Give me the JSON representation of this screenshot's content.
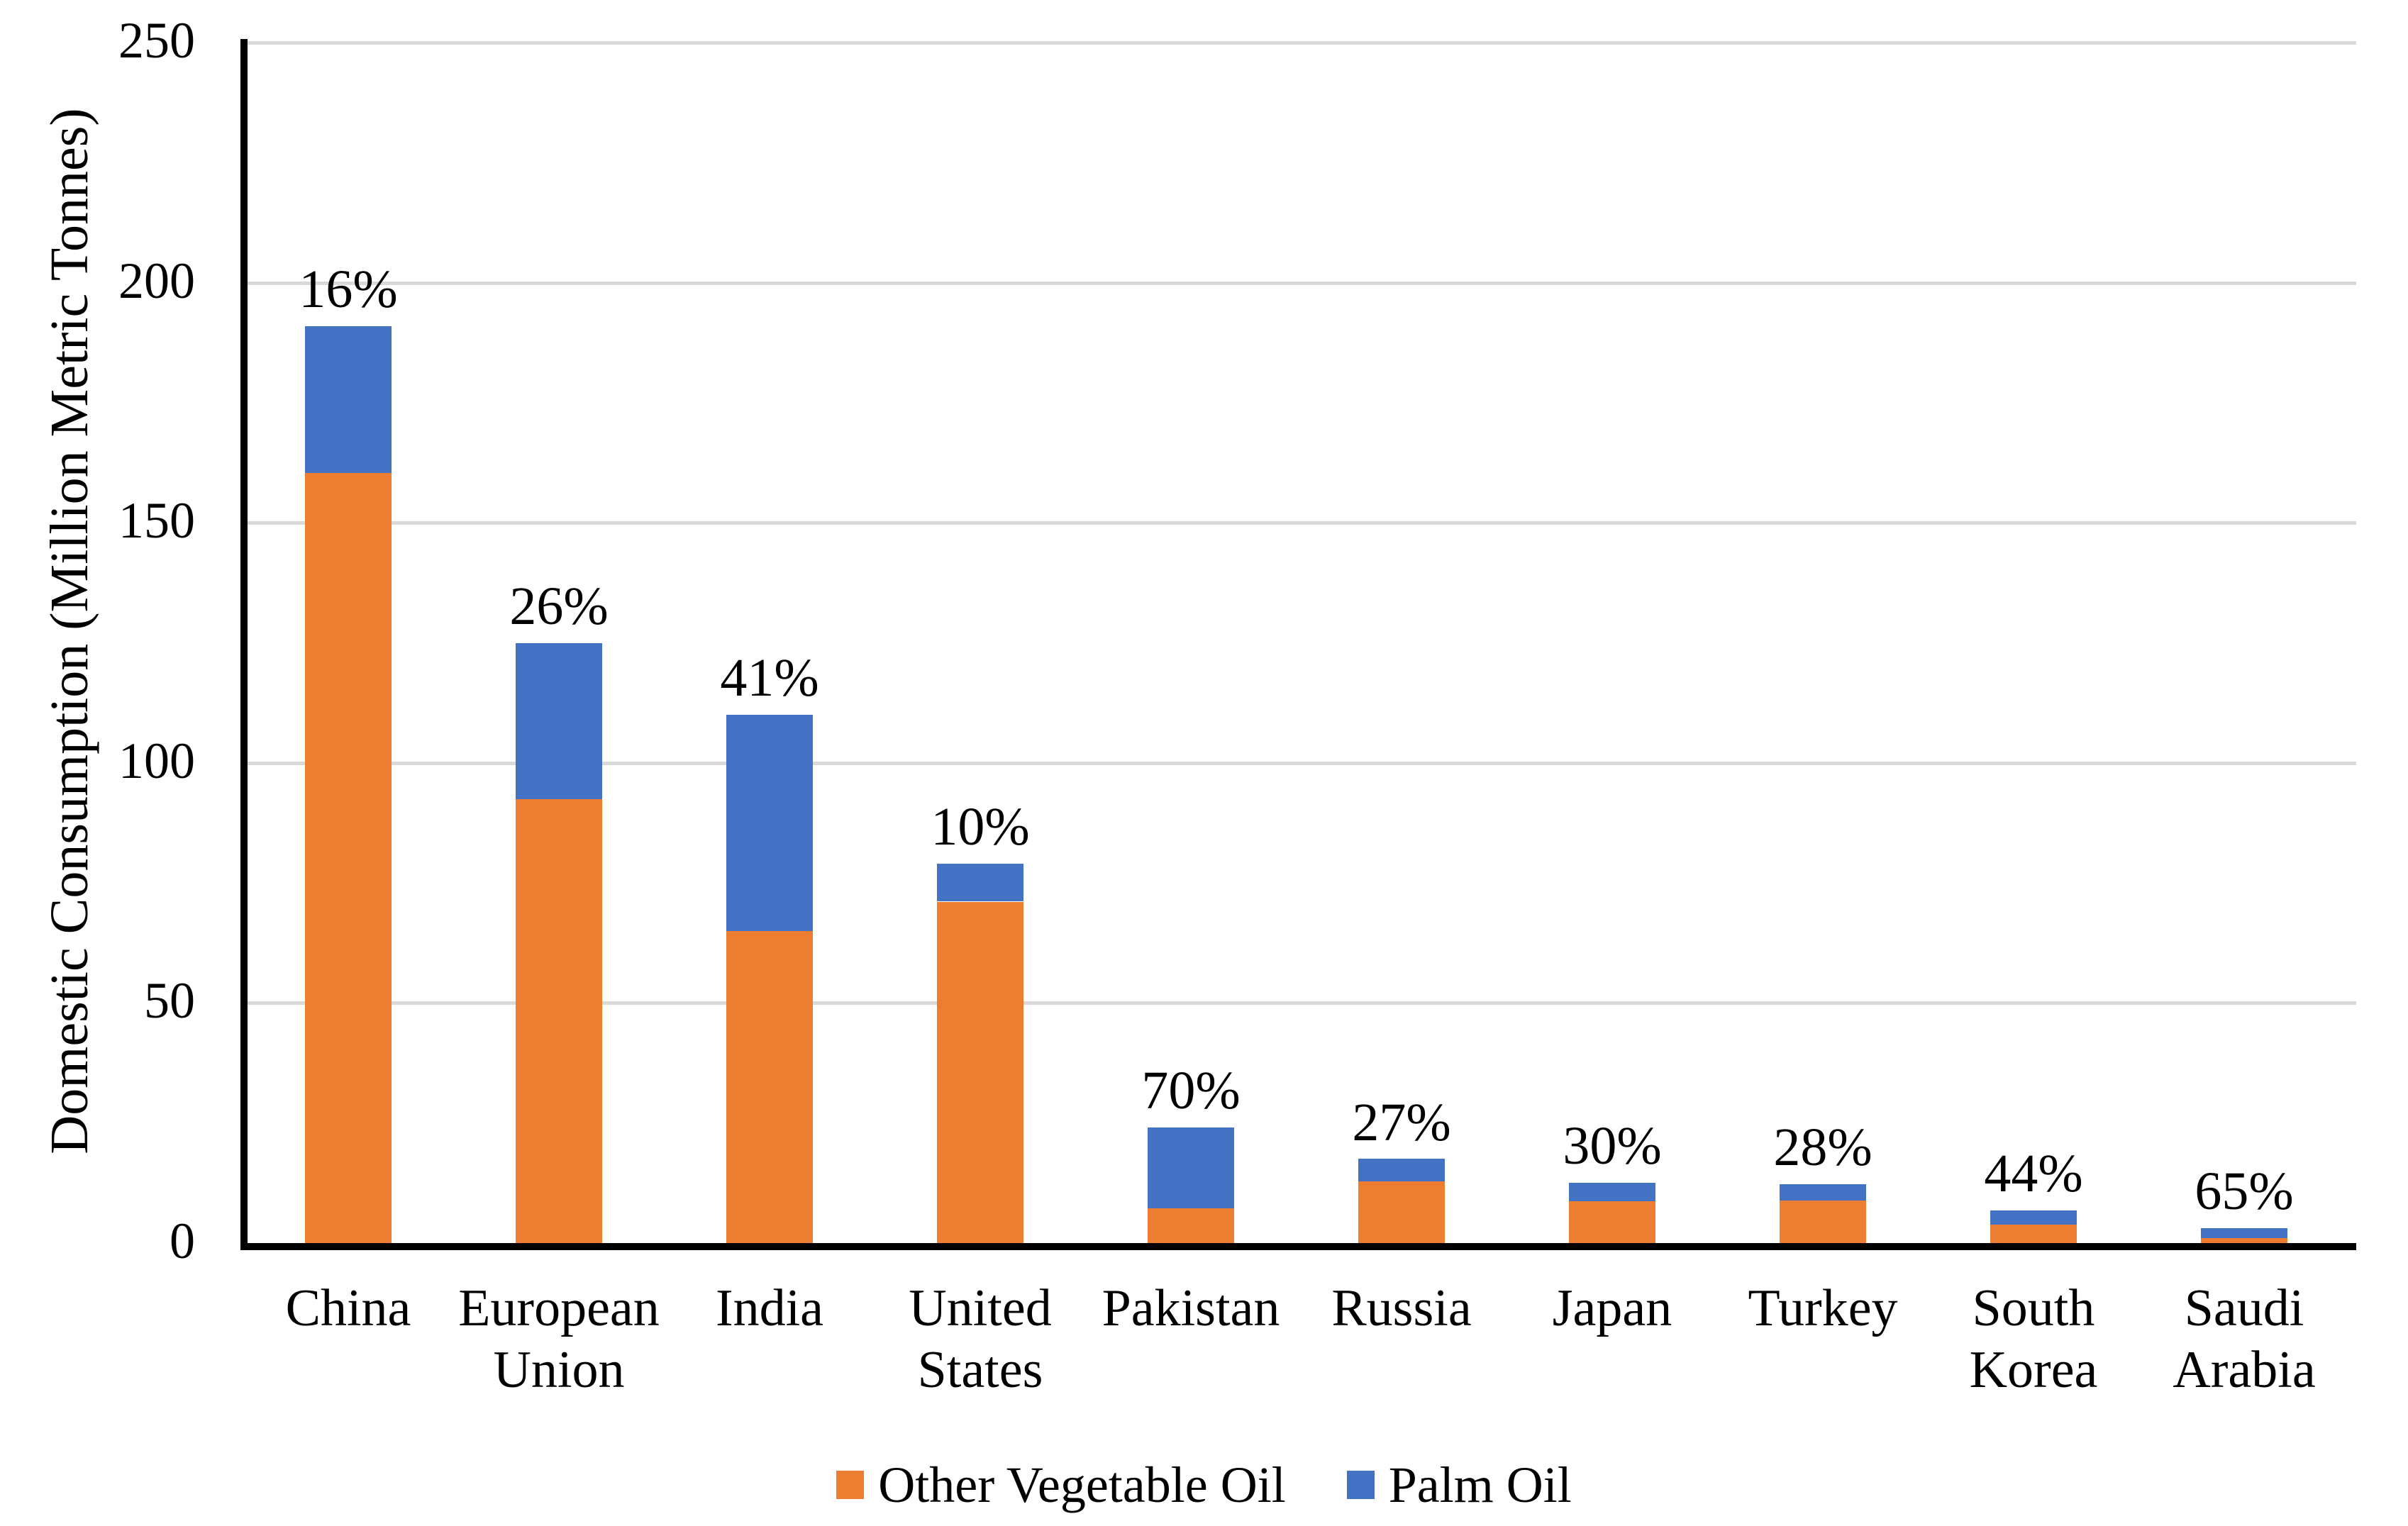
{
  "chart_data": {
    "type": "bar",
    "stacked": true,
    "title": "",
    "xlabel": "",
    "ylabel": "Domestic Consumption (Million Metric Tonnes)",
    "ylim": [
      0,
      250
    ],
    "yticks": [
      0,
      50,
      100,
      150,
      200,
      250
    ],
    "grid": "horizontal-light-gray",
    "legend_position": "bottom-center",
    "categories": [
      "China",
      "European Union",
      "India",
      "United States",
      "Pakistan",
      "Russia",
      "Japan",
      "Turkey",
      "South Korea",
      "Saudi Arabia"
    ],
    "category_label_lines": [
      [
        "China"
      ],
      [
        "European",
        "Union"
      ],
      [
        "India"
      ],
      [
        "United",
        "States"
      ],
      [
        "Pakistan"
      ],
      [
        "Russia"
      ],
      [
        "Japan"
      ],
      [
        "Turkey"
      ],
      [
        "South",
        "Korea"
      ],
      [
        "Saudi",
        "Arabia"
      ]
    ],
    "series": [
      {
        "name": "Other Vegetable Oil",
        "color": "#ED7D31",
        "values": [
          160.4,
          92.5,
          64.9,
          71.1,
          7.2,
          12.8,
          8.75,
          8.8,
          3.8,
          1.1
        ]
      },
      {
        "name": "Palm Oil",
        "color": "#4472C4",
        "values": [
          30.6,
          32.5,
          45.1,
          7.9,
          16.8,
          4.7,
          3.75,
          3.4,
          3.0,
          2.0
        ]
      }
    ],
    "totals": [
      191,
      125,
      110,
      79,
      24,
      17.5,
      12.5,
      12.2,
      6.8,
      3.1
    ],
    "bar_percent_labels": [
      "16%",
      "26%",
      "41%",
      "10%",
      "70%",
      "27%",
      "30%",
      "28%",
      "44%",
      "65%"
    ]
  },
  "legend": {
    "items": [
      {
        "label": "Other Vegetable Oil",
        "color": "#ED7D31"
      },
      {
        "label": "Palm Oil",
        "color": "#4472C4"
      }
    ]
  },
  "colors": {
    "other_vegetable_oil": "#ED7D31",
    "palm_oil": "#4472C4",
    "gridline": "#D9D9D9",
    "axis": "#000000",
    "background": "#FFFFFF"
  }
}
